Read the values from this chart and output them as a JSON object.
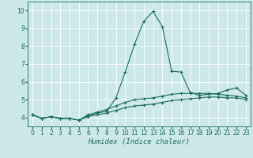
{
  "xlabel": "Humidex (Indice chaleur)",
  "bg_color": "#cce8e8",
  "line_color": "#1a6b60",
  "grid_color": "#ffffff",
  "x": [
    0,
    1,
    2,
    3,
    4,
    5,
    6,
    7,
    8,
    9,
    10,
    11,
    12,
    13,
    14,
    15,
    16,
    17,
    18,
    19,
    20,
    21,
    22,
    23
  ],
  "y_main": [
    4.15,
    3.95,
    4.05,
    3.95,
    3.95,
    3.85,
    4.1,
    4.25,
    4.35,
    5.1,
    6.55,
    8.1,
    9.4,
    9.95,
    9.1,
    6.6,
    6.55,
    5.4,
    5.25,
    5.3,
    5.35,
    5.55,
    5.65,
    5.25
  ],
  "y_low": [
    4.15,
    3.95,
    4.05,
    3.95,
    3.95,
    3.85,
    4.05,
    4.15,
    4.25,
    4.4,
    4.55,
    4.65,
    4.7,
    4.75,
    4.85,
    4.95,
    5.0,
    5.05,
    5.1,
    5.15,
    5.15,
    5.1,
    5.1,
    5.0
  ],
  "y_high": [
    4.15,
    3.95,
    4.05,
    3.95,
    3.95,
    3.85,
    4.15,
    4.3,
    4.45,
    4.65,
    4.85,
    5.0,
    5.05,
    5.1,
    5.2,
    5.3,
    5.35,
    5.35,
    5.35,
    5.35,
    5.3,
    5.25,
    5.2,
    5.1
  ],
  "xlim": [
    -0.5,
    23.5
  ],
  "ylim": [
    3.5,
    10.5
  ],
  "yticks": [
    4,
    5,
    6,
    7,
    8,
    9,
    10
  ],
  "xticks": [
    0,
    1,
    2,
    3,
    4,
    5,
    6,
    7,
    8,
    9,
    10,
    11,
    12,
    13,
    14,
    15,
    16,
    17,
    18,
    19,
    20,
    21,
    22,
    23
  ],
  "tick_fontsize": 5.5,
  "xlabel_fontsize": 6.5,
  "linewidth": 0.8,
  "markersize": 3.0
}
